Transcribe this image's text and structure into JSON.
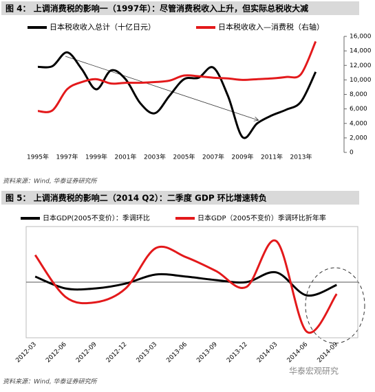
{
  "chart_data": [
    {
      "type": "line",
      "title": "图 4： 上调消费税的影响一（1997年）：尽管消费税收入上升，但实际总税收大减",
      "source": "资料来源：Wind, 华泰证券研究所",
      "categories": [
        "1995年",
        null,
        "1997年",
        null,
        "1999年",
        null,
        "2001年",
        null,
        "2003年",
        null,
        "2005年",
        null,
        "2007年",
        null,
        "2009年",
        null,
        "2011年",
        null,
        "2013年",
        null
      ],
      "series": [
        {
          "name": "日本税收收入总计（十亿日元）",
          "color": "#000000",
          "values": [
            11800,
            11900,
            13800,
            11500,
            8700,
            11300,
            10100,
            6800,
            5400,
            7800,
            10100,
            10300,
            11700,
            7800,
            2100,
            4000,
            5100,
            5900,
            7000,
            11100
          ]
        },
        {
          "name": "日本税收收入—消费税（右轴）",
          "color": "#e3191b",
          "values": [
            5700,
            5800,
            8700,
            9700,
            10100,
            9500,
            9600,
            9600,
            9700,
            9900,
            10600,
            10500,
            10300,
            10200,
            10000,
            10100,
            10200,
            10400,
            10800,
            15300
          ]
        }
      ],
      "ylim": [
        0,
        16000
      ],
      "yticks": [
        0,
        {
          "value": 2000,
          "label": "2,000"
        },
        {
          "value": 4000,
          "label": "4,000"
        },
        {
          "value": 6000,
          "label": "6,000"
        },
        {
          "value": 8000,
          "label": "8,000"
        },
        {
          "value": 10000,
          "label": "10,000"
        },
        {
          "value": 12000,
          "label": "12,000"
        },
        {
          "value": 14000,
          "label": "14,000"
        },
        {
          "value": 16000,
          "label": "16,000"
        }
      ],
      "y_axis_position": "right"
    },
    {
      "type": "line",
      "title": "图 5： 上调消费税的影响二（2014 Q2）：二季度 GDP 环比增速转负",
      "source": "资料来源：Wind, 华泰证券研究所",
      "watermark": "华泰宏观研究",
      "categories": [
        "2012-03",
        "2012-06",
        "2012-09",
        "2012-12",
        "2013-03",
        "2013-06",
        "2013-09",
        "2013-12",
        "2014-03",
        "2014-06",
        "2014-09"
      ],
      "series": [
        {
          "name": "日本GDP(2005不变价）：季调环比",
          "color": "#000000",
          "values": [
            0.8,
            -0.9,
            -0.9,
            -0.2,
            1.1,
            0.8,
            0.3,
            0,
            1.4,
            -1.9,
            -0.4
          ]
        },
        {
          "name": "日本GDP（2005不变价）季调环比折年率",
          "color": "#e3191b",
          "values": [
            3.9,
            -2.1,
            -2.9,
            -0.9,
            4.9,
            3.6,
            1.6,
            -0.7,
            5.9,
            -7.1,
            -1.7
          ]
        }
      ],
      "ylim": [
        -8,
        8
      ],
      "zero_line": true,
      "x_label_rotation": -45
    }
  ]
}
